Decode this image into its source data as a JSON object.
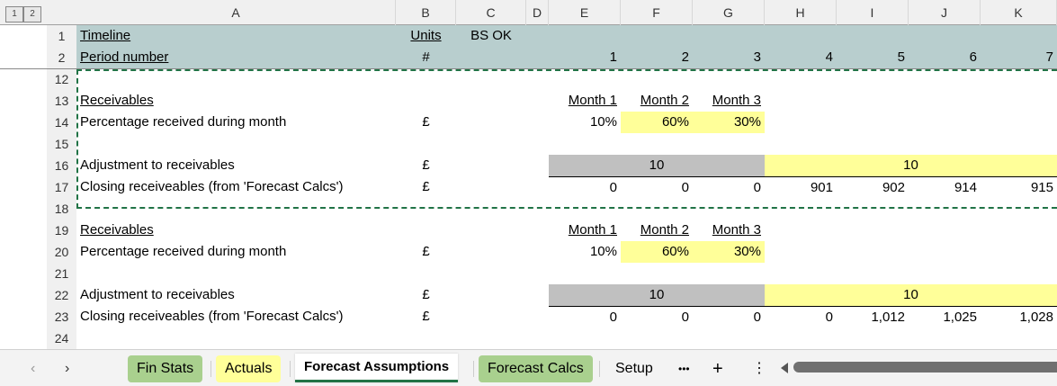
{
  "outline_levels": [
    "1",
    "2"
  ],
  "columns": [
    "A",
    "B",
    "C",
    "D",
    "E",
    "F",
    "G",
    "H",
    "I",
    "J",
    "K"
  ],
  "header_rows": {
    "r1": {
      "num": "1",
      "a": "Timeline",
      "b": "Units",
      "c": "BS OK"
    },
    "r2": {
      "num": "2",
      "a": "Period number",
      "b": "#",
      "periods": [
        "1",
        "2",
        "3",
        "4",
        "5",
        "6",
        "7"
      ]
    }
  },
  "row_numbers": [
    "12",
    "13",
    "14",
    "15",
    "16",
    "17",
    "18",
    "19",
    "20",
    "21",
    "22",
    "23",
    "24"
  ],
  "blocks": [
    {
      "title": "Receivables",
      "months": [
        "Month 1",
        "Month 2",
        "Month 3"
      ],
      "pct_label": "Percentage received during month",
      "pct_unit": "£",
      "pct": [
        "10%",
        "60%",
        "30%"
      ],
      "adj_label": "Adjustment to receivables",
      "adj_unit": "£",
      "adj_gray": "10",
      "adj_yellow": "10",
      "close_label": "Closing receiveables (from 'Forecast Calcs')",
      "close_unit": "£",
      "close": [
        "0",
        "0",
        "0",
        "901",
        "902",
        "914",
        "915"
      ]
    },
    {
      "title": "Receivables",
      "months": [
        "Month 1",
        "Month 2",
        "Month 3"
      ],
      "pct_label": "Percentage received during month",
      "pct_unit": "£",
      "pct": [
        "10%",
        "60%",
        "30%"
      ],
      "adj_label": "Adjustment to receivables",
      "adj_unit": "£",
      "adj_gray": "10",
      "adj_yellow": "10",
      "close_label": "Closing receiveables (from 'Forecast Calcs')",
      "close_unit": "£",
      "close": [
        "0",
        "0",
        "0",
        "0",
        "1,012",
        "1,025",
        "1,028"
      ]
    }
  ],
  "tabs": [
    {
      "label": "Fin Stats",
      "color": "#a9d08e"
    },
    {
      "label": "Actuals",
      "color": "#ffff99"
    },
    {
      "label": "Forecast Assumptions",
      "color": "#ffffff",
      "active": true
    },
    {
      "label": "Forecast Calcs",
      "color": "#a9d08e"
    },
    {
      "label": "Setup",
      "color": ""
    }
  ],
  "tab_controls": {
    "more": "•••",
    "add": "+",
    "options": "⋮"
  },
  "colors": {
    "header_fill": "#b8cece",
    "input_fill": "#ffff99",
    "locked_fill": "#c0c0c0",
    "selection_border": "#217346"
  }
}
